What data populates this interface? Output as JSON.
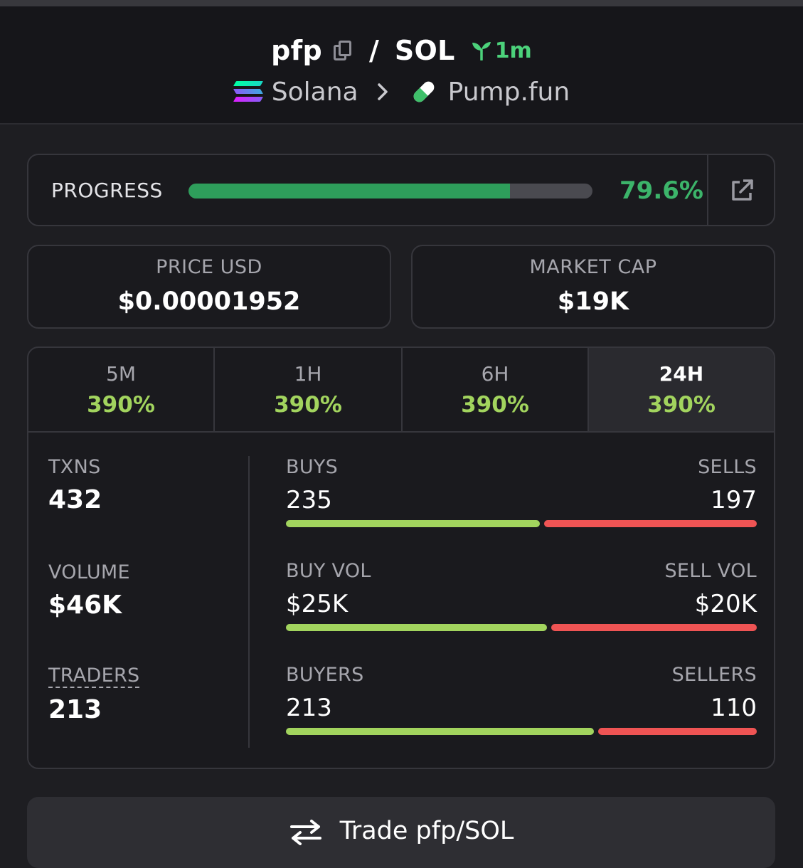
{
  "header": {
    "base_token": "pfp",
    "separator": "/",
    "quote_token": "SOL",
    "age": "1m",
    "chain": "Solana",
    "dex": "Pump.fun"
  },
  "progress": {
    "label": "PROGRESS",
    "value_text": "79.6%",
    "fraction": 0.796,
    "external_icon": "external-link-icon"
  },
  "price": {
    "label": "PRICE USD",
    "value": "$0.00001952"
  },
  "market_cap": {
    "label": "MARKET CAP",
    "value": "$19K"
  },
  "tabs": [
    {
      "label": "5M",
      "value": "390%"
    },
    {
      "label": "1H",
      "value": "390%"
    },
    {
      "label": "6H",
      "value": "390%"
    },
    {
      "label": "24H",
      "value": "390%",
      "active": true
    }
  ],
  "metrics": {
    "txns": {
      "label": "TXNS",
      "value": "432"
    },
    "volume": {
      "label": "VOLUME",
      "value": "$46K"
    },
    "traders": {
      "label": "TRADERS",
      "value": "213"
    }
  },
  "ratios": {
    "buys_sells": {
      "left_label": "BUYS",
      "right_label": "SELLS",
      "left_value": "235",
      "right_value": "197",
      "left_fraction": 0.544
    },
    "buy_sell_vol": {
      "left_label": "BUY VOL",
      "right_label": "SELL VOL",
      "left_value": "$25K",
      "right_value": "$20K",
      "left_fraction": 0.559
    },
    "buyers_sellers": {
      "left_label": "BUYERS",
      "right_label": "SELLERS",
      "left_value": "213",
      "right_value": "110",
      "left_fraction": 0.659
    }
  },
  "trade_button": {
    "label": "Trade pfp/SOL",
    "icon": "swap-arrows-icon"
  },
  "colors": {
    "positive": "#a2d45e",
    "negative": "#ef5454",
    "progress": "#2e9e5b",
    "age": "#4cd27b"
  }
}
